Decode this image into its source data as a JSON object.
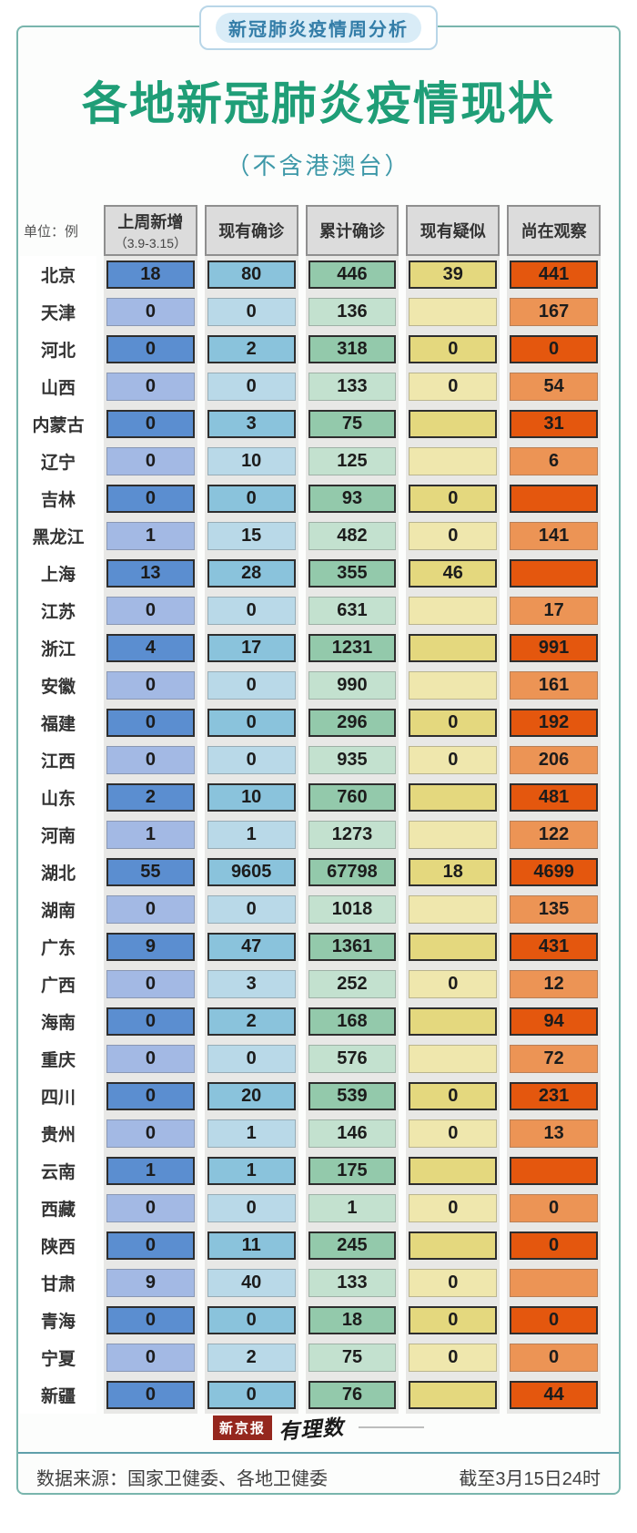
{
  "badge": "新冠肺炎疫情周分析",
  "title": "各地新冠肺炎疫情现状",
  "subtitle": "（不含港澳台）",
  "table": {
    "unit_label": "单位：例",
    "headers": [
      "上周新增",
      "现有确诊",
      "累计确诊",
      "现有疑似",
      "尚在观察"
    ],
    "header_note": "（3.9-3.15）"
  },
  "footer": {
    "logo_primary": "新京报",
    "logo_secondary": "有理数",
    "source": "数据来源：国家卫健委、各地卫健委",
    "as_of": "截至3月15日24时"
  },
  "colors": {
    "border_teal": "#79b5ad",
    "title_green": "#1f9e77",
    "subtitle_teal": "#3d98a8",
    "badge_blue": "#337da8",
    "badge_pill_bg": "#d9ecf7",
    "header_cell_bg": "#dcdcdc",
    "track_gray": "#e8e8e6",
    "logo_red": "#95271e",
    "divider_teal": "#5f9faa",
    "col_dark": [
      "#5b8ed0",
      "#8ac3dc",
      "#93c9ab",
      "#e4d87e",
      "#e4570e"
    ],
    "col_light": [
      "#a3b9e4",
      "#b9d9e8",
      "#c3e1cf",
      "#efe7ad",
      "#ec9455"
    ]
  },
  "chart_data": {
    "type": "table",
    "title": "各地新冠肺炎疫情现状（不含港澳台）",
    "unit": "单位：例",
    "columns": [
      "上周新增（3.9-3.15）",
      "现有确诊",
      "累计确诊",
      "现有疑似",
      "尚在观察"
    ],
    "rows": [
      {
        "region": "北京",
        "values": [
          "18",
          "80",
          "446",
          "39",
          "441"
        ]
      },
      {
        "region": "天津",
        "values": [
          "0",
          "0",
          "136",
          "",
          "167"
        ]
      },
      {
        "region": "河北",
        "values": [
          "0",
          "2",
          "318",
          "0",
          "0"
        ]
      },
      {
        "region": "山西",
        "values": [
          "0",
          "0",
          "133",
          "0",
          "54"
        ]
      },
      {
        "region": "内蒙古",
        "values": [
          "0",
          "3",
          "75",
          "",
          "31"
        ]
      },
      {
        "region": "辽宁",
        "values": [
          "0",
          "10",
          "125",
          "",
          "6"
        ]
      },
      {
        "region": "吉林",
        "values": [
          "0",
          "0",
          "93",
          "0",
          ""
        ]
      },
      {
        "region": "黑龙江",
        "values": [
          "1",
          "15",
          "482",
          "0",
          "141"
        ]
      },
      {
        "region": "上海",
        "values": [
          "13",
          "28",
          "355",
          "46",
          ""
        ]
      },
      {
        "region": "江苏",
        "values": [
          "0",
          "0",
          "631",
          "",
          "17"
        ]
      },
      {
        "region": "浙江",
        "values": [
          "4",
          "17",
          "1231",
          "",
          "991"
        ]
      },
      {
        "region": "安徽",
        "values": [
          "0",
          "0",
          "990",
          "",
          "161"
        ]
      },
      {
        "region": "福建",
        "values": [
          "0",
          "0",
          "296",
          "0",
          "192"
        ]
      },
      {
        "region": "江西",
        "values": [
          "0",
          "0",
          "935",
          "0",
          "206"
        ]
      },
      {
        "region": "山东",
        "values": [
          "2",
          "10",
          "760",
          "",
          "481"
        ]
      },
      {
        "region": "河南",
        "values": [
          "1",
          "1",
          "1273",
          "",
          "122"
        ]
      },
      {
        "region": "湖北",
        "values": [
          "55",
          "9605",
          "67798",
          "18",
          "4699"
        ]
      },
      {
        "region": "湖南",
        "values": [
          "0",
          "0",
          "1018",
          "",
          "135"
        ]
      },
      {
        "region": "广东",
        "values": [
          "9",
          "47",
          "1361",
          "",
          "431"
        ]
      },
      {
        "region": "广西",
        "values": [
          "0",
          "3",
          "252",
          "0",
          "12"
        ]
      },
      {
        "region": "海南",
        "values": [
          "0",
          "2",
          "168",
          "",
          "94"
        ]
      },
      {
        "region": "重庆",
        "values": [
          "0",
          "0",
          "576",
          "",
          "72"
        ]
      },
      {
        "region": "四川",
        "values": [
          "0",
          "20",
          "539",
          "0",
          "231"
        ]
      },
      {
        "region": "贵州",
        "values": [
          "0",
          "1",
          "146",
          "0",
          "13"
        ]
      },
      {
        "region": "云南",
        "values": [
          "1",
          "1",
          "175",
          "",
          ""
        ]
      },
      {
        "region": "西藏",
        "values": [
          "0",
          "0",
          "1",
          "0",
          "0"
        ]
      },
      {
        "region": "陕西",
        "values": [
          "0",
          "11",
          "245",
          "",
          "0"
        ]
      },
      {
        "region": "甘肃",
        "values": [
          "9",
          "40",
          "133",
          "0",
          ""
        ]
      },
      {
        "region": "青海",
        "values": [
          "0",
          "0",
          "18",
          "0",
          "0"
        ]
      },
      {
        "region": "宁夏",
        "values": [
          "0",
          "2",
          "75",
          "0",
          "0"
        ]
      },
      {
        "region": "新疆",
        "values": [
          "0",
          "0",
          "76",
          "",
          "44"
        ]
      }
    ]
  }
}
